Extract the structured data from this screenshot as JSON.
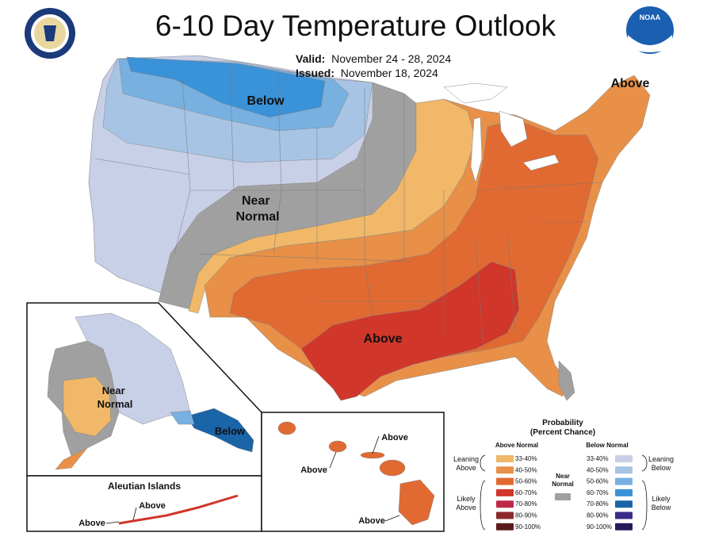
{
  "title": "6-10 Day Temperature Outlook",
  "valid_label": "Valid:",
  "valid_value": "November 24 - 28, 2024",
  "issued_label": "Issued:",
  "issued_value": "November 18, 2024",
  "logos": {
    "left_seal": "United States Department of Commerce seal",
    "right_logo": "NOAA"
  },
  "map_labels": {
    "below_nw": "Below",
    "near_normal": "Near Normal",
    "above_ne": "Above",
    "above_south": "Above",
    "alaska_near_normal": "Near Normal",
    "alaska_below": "Below",
    "aleutian_title": "Aleutian Islands",
    "aleutian_above_1": "Above",
    "aleutian_above_2": "Above",
    "hawaii_above_1": "Above",
    "hawaii_above_2": "Above",
    "hawaii_above_3": "Above"
  },
  "legend": {
    "title": "Probability",
    "subtitle": "(Percent Chance)",
    "above_header": "Above Normal",
    "below_header": "Below Normal",
    "near_normal": "Near Normal",
    "leaning_above": "Leaning Above",
    "likely_above": "Likely Above",
    "leaning_below": "Leaning Below",
    "likely_below": "Likely Below",
    "above_bins": [
      {
        "range": "33-40%",
        "color": "#f0b868"
      },
      {
        "range": "40-50%",
        "color": "#e89048"
      },
      {
        "range": "50-60%",
        "color": "#e06a32"
      },
      {
        "range": "60-70%",
        "color": "#d0362a"
      },
      {
        "range": "70-80%",
        "color": "#c02848"
      },
      {
        "range": "80-90%",
        "color": "#8a2a2a"
      },
      {
        "range": "90-100%",
        "color": "#5a1a1a"
      }
    ],
    "below_bins": [
      {
        "range": "33-40%",
        "color": "#c8d0e8"
      },
      {
        "range": "40-50%",
        "color": "#a8c4e4"
      },
      {
        "range": "50-60%",
        "color": "#78b0e0"
      },
      {
        "range": "60-70%",
        "color": "#3a92d8"
      },
      {
        "range": "70-80%",
        "color": "#1a64a8"
      },
      {
        "range": "80-90%",
        "color": "#3a2a88"
      },
      {
        "range": "90-100%",
        "color": "#261a5a"
      }
    ],
    "near_normal_color": "#a0a0a0"
  }
}
